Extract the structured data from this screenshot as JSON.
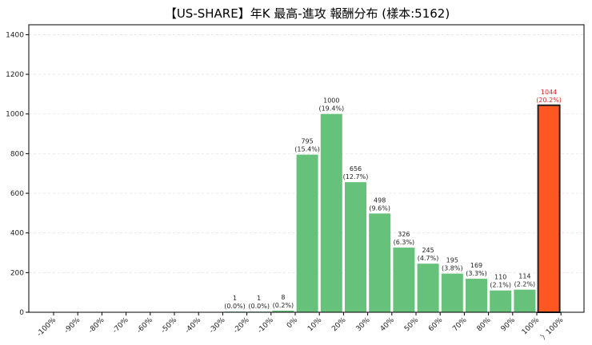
{
  "chart_data": {
    "type": "bar",
    "title": "【US-SHARE】年K 最高-進攻 報酬分布 (樣本:5162)",
    "xlabel": "",
    "ylabel": "",
    "ylim": [
      0,
      1450
    ],
    "yticks": [
      "0",
      "200",
      "400",
      "600",
      "800",
      "1000",
      "1200",
      "1400"
    ],
    "ytick_values": [
      0,
      200,
      400,
      600,
      800,
      1000,
      1200,
      1400
    ],
    "grid": true,
    "categories": [
      "-100%",
      "-90%",
      "-80%",
      "-70%",
      "-60%",
      "-50%",
      "-40%",
      "-30%",
      "-20%",
      "-10%",
      "0%",
      "10%",
      "20%",
      "30%",
      "40%",
      "50%",
      "60%",
      "70%",
      "80%",
      "90%",
      "100%",
      "〉100%"
    ],
    "bins": [
      {
        "value": 1,
        "count_label": "1",
        "pct_label": "(0.0%)",
        "highlight": false
      },
      {
        "value": 1,
        "count_label": "1",
        "pct_label": "(0.0%)",
        "highlight": false
      },
      {
        "value": 8,
        "count_label": "8",
        "pct_label": "(0.2%)",
        "highlight": false
      },
      {
        "value": 795,
        "count_label": "795",
        "pct_label": "(15.4%)",
        "highlight": false
      },
      {
        "value": 1000,
        "count_label": "1000",
        "pct_label": "(19.4%)",
        "highlight": false
      },
      {
        "value": 656,
        "count_label": "656",
        "pct_label": "(12.7%)",
        "highlight": false
      },
      {
        "value": 498,
        "count_label": "498",
        "pct_label": "(9.6%)",
        "highlight": false
      },
      {
        "value": 326,
        "count_label": "326",
        "pct_label": "(6.3%)",
        "highlight": false
      },
      {
        "value": 245,
        "count_label": "245",
        "pct_label": "(4.7%)",
        "highlight": false
      },
      {
        "value": 195,
        "count_label": "195",
        "pct_label": "(3.8%)",
        "highlight": false
      },
      {
        "value": 169,
        "count_label": "169",
        "pct_label": "(3.3%)",
        "highlight": false
      },
      {
        "value": 110,
        "count_label": "110",
        "pct_label": "(2.1%)",
        "highlight": false
      },
      {
        "value": 114,
        "count_label": "114",
        "pct_label": "(2.2%)",
        "highlight": false
      },
      {
        "value": 1044,
        "count_label": "1044",
        "pct_label": "(20.2%)",
        "highlight": true
      }
    ],
    "bin_start_category_index": 7,
    "colors": {
      "bar": "#66c27a",
      "highlight_bar": "#ff5722",
      "highlight_edge": "#222222",
      "highlight_label": "#d62728"
    }
  }
}
